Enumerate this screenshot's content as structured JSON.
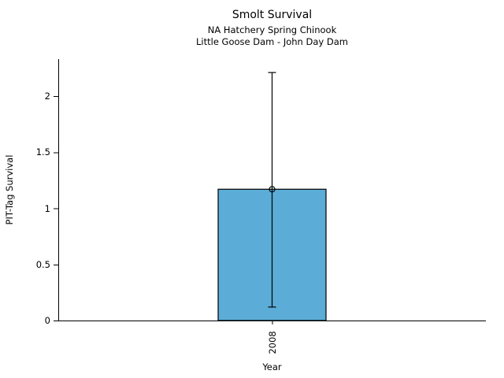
{
  "chart_data": {
    "type": "bar",
    "title": "Smolt Survival",
    "subtitle": [
      "NA Hatchery Spring Chinook",
      "Little Goose Dam - John Day Dam"
    ],
    "xlabel": "Year",
    "ylabel": "PIT-Tag Survival",
    "categories": [
      "2008"
    ],
    "values": [
      1.17
    ],
    "error_low": [
      0.12
    ],
    "error_high": [
      2.21
    ],
    "ytick_labels": [
      "0",
      "0.5",
      "1",
      "1.5",
      "2"
    ],
    "ytick_values": [
      0,
      0.5,
      1,
      1.5,
      2
    ],
    "ylim": [
      0,
      2.33
    ],
    "grid": false,
    "legend": false,
    "marker": "open-circle",
    "colors": {
      "bar_fill": "#5BACD6",
      "bar_edge": "#000000",
      "errorbar": "#000000",
      "axis": "#000000",
      "text": "#000000",
      "background": "#FFFFFF"
    }
  }
}
